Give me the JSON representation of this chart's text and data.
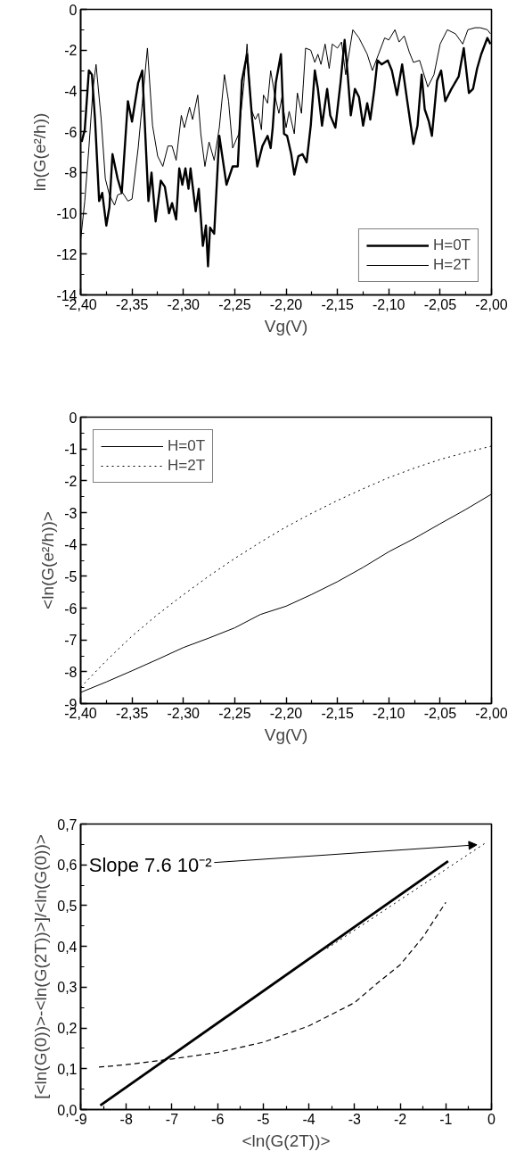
{
  "chart_data": [
    {
      "type": "line",
      "xlabel": "Vg(V)",
      "ylabel": "ln(G(e²/h))",
      "xlim": [
        -2.4,
        -2.0
      ],
      "ylim": [
        -14,
        0
      ],
      "xticks": [
        {
          "value": -2.4,
          "label": "-2,40"
        },
        {
          "value": -2.375,
          "label": null
        },
        {
          "value": -2.35,
          "label": "-2,35"
        },
        {
          "value": -2.325,
          "label": null
        },
        {
          "value": -2.3,
          "label": "-2,30"
        },
        {
          "value": -2.275,
          "label": null
        },
        {
          "value": -2.25,
          "label": "-2,25"
        },
        {
          "value": -2.225,
          "label": null
        },
        {
          "value": -2.2,
          "label": "-2,20"
        },
        {
          "value": -2.175,
          "label": null
        },
        {
          "value": -2.15,
          "label": "-2,15"
        },
        {
          "value": -2.125,
          "label": null
        },
        {
          "value": -2.1,
          "label": "-2,10"
        },
        {
          "value": -2.075,
          "label": null
        },
        {
          "value": -2.05,
          "label": "-2,05"
        },
        {
          "value": -2.025,
          "label": null
        },
        {
          "value": -2.0,
          "label": "-2,00"
        }
      ],
      "yticks": [
        -14,
        {
          "value": -13,
          "label": null
        },
        -12,
        {
          "value": -11,
          "label": null
        },
        -10,
        {
          "value": -9,
          "label": null
        },
        -8,
        {
          "value": -7,
          "label": null
        },
        -6,
        {
          "value": -5,
          "label": null
        },
        -4,
        {
          "value": -3,
          "label": null
        },
        -2,
        {
          "value": -1,
          "label": null
        },
        0
      ],
      "legend": "bottom right",
      "line_style": "solid",
      "series": [
        {
          "name": "H=0T",
          "color": "#000000",
          "x": [
            -2.399,
            -2.396,
            -2.392,
            -2.389,
            -2.386,
            -2.382,
            -2.379,
            -2.375,
            -2.372,
            -2.369,
            -2.364,
            -2.36,
            -2.354,
            -2.35,
            -2.344,
            -2.34,
            -2.334,
            -2.331,
            -2.327,
            -2.322,
            -2.318,
            -2.314,
            -2.311,
            -2.307,
            -2.304,
            -2.301,
            -2.298,
            -2.295,
            -2.293,
            -2.288,
            -2.285,
            -2.281,
            -2.278,
            -2.276,
            -2.274,
            -2.27,
            -2.265,
            -2.258,
            -2.252,
            -2.247,
            -2.243,
            -2.238,
            -2.233,
            -2.228,
            -2.223,
            -2.218,
            -2.215,
            -2.213,
            -2.21,
            -2.205,
            -2.202,
            -2.199,
            -2.195,
            -2.192,
            -2.188,
            -2.184,
            -2.18,
            -2.176,
            -2.172,
            -2.169,
            -2.165,
            -2.16,
            -2.157,
            -2.152,
            -2.147,
            -2.143,
            -2.14,
            -2.137,
            -2.133,
            -2.129,
            -2.125,
            -2.121,
            -2.118,
            -2.114,
            -2.111,
            -2.107,
            -2.101,
            -2.097,
            -2.092,
            -2.087,
            -2.082,
            -2.076,
            -2.072,
            -2.068,
            -2.065,
            -2.061,
            -2.058,
            -2.053,
            -2.049,
            -2.045,
            -2.039,
            -2.032,
            -2.027,
            -2.022,
            -2.018,
            -2.014,
            -2.01,
            -2.004,
            -2.001
          ],
          "values": [
            -6.5,
            -5.9,
            -3.0,
            -3.2,
            -5.4,
            -9.4,
            -9.0,
            -10.6,
            -9.7,
            -7.1,
            -8.3,
            -9.0,
            -4.5,
            -5.5,
            -3.6,
            -3.0,
            -9.4,
            -8.0,
            -10.4,
            -8.4,
            -8.7,
            -10.0,
            -9.5,
            -10.3,
            -7.8,
            -8.6,
            -7.8,
            -8.8,
            -7.8,
            -9.9,
            -8.8,
            -11.6,
            -10.6,
            -12.6,
            -10.7,
            -11.0,
            -6.2,
            -8.6,
            -7.7,
            -7.7,
            -3.5,
            -2.2,
            -5.4,
            -7.7,
            -6.7,
            -6.2,
            -6.8,
            -5.8,
            -3.6,
            -2.2,
            -6.1,
            -6.2,
            -7.1,
            -8.1,
            -7.2,
            -7.1,
            -7.5,
            -5.7,
            -3.0,
            -3.9,
            -5.7,
            -3.9,
            -5.2,
            -5.8,
            -3.6,
            -1.5,
            -3.2,
            -5.2,
            -3.9,
            -4.3,
            -5.7,
            -4.6,
            -5.4,
            -3.9,
            -2.5,
            -2.7,
            -2.5,
            -3.0,
            -4.2,
            -2.7,
            -4.5,
            -6.6,
            -5.7,
            -3.2,
            -4.9,
            -5.5,
            -6.2,
            -3.5,
            -3.0,
            -4.5,
            -3.9,
            -3.3,
            -1.9,
            -4.1,
            -3.9,
            -2.9,
            -2.2,
            -1.4,
            -1.7
          ]
        },
        {
          "name": "H=2T",
          "color": "#000000",
          "x": [
            -2.4,
            -2.396,
            -2.392,
            -2.388,
            -2.385,
            -2.38,
            -2.376,
            -2.372,
            -2.367,
            -2.364,
            -2.359,
            -2.354,
            -2.35,
            -2.344,
            -2.34,
            -2.335,
            -2.33,
            -2.325,
            -2.32,
            -2.315,
            -2.311,
            -2.307,
            -2.302,
            -2.299,
            -2.294,
            -2.291,
            -2.286,
            -2.283,
            -2.279,
            -2.275,
            -2.27,
            -2.265,
            -2.26,
            -2.256,
            -2.252,
            -2.246,
            -2.241,
            -2.238,
            -2.234,
            -2.23,
            -2.227,
            -2.224,
            -2.222,
            -2.218,
            -2.215,
            -2.211,
            -2.207,
            -2.204,
            -2.2,
            -2.197,
            -2.192,
            -2.189,
            -2.185,
            -2.181,
            -2.176,
            -2.172,
            -2.169,
            -2.166,
            -2.162,
            -2.158,
            -2.155,
            -2.15,
            -2.146,
            -2.142,
            -2.135,
            -2.129,
            -2.121,
            -2.116,
            -2.11,
            -2.104,
            -2.1,
            -2.094,
            -2.09,
            -2.085,
            -2.08,
            -2.076,
            -2.07,
            -2.062,
            -2.056,
            -2.05,
            -2.043,
            -2.035,
            -2.028,
            -2.023,
            -2.016,
            -2.011,
            -2.004,
            -2.001
          ],
          "values": [
            -11.3,
            -9.4,
            -6.8,
            -3.9,
            -2.7,
            -5.4,
            -8.3,
            -9.1,
            -9.6,
            -9.1,
            -9.0,
            -9.4,
            -9.3,
            -6.8,
            -4.6,
            -1.9,
            -5.7,
            -7.2,
            -7.7,
            -6.7,
            -6.7,
            -7.4,
            -5.2,
            -5.8,
            -4.8,
            -5.4,
            -4.2,
            -6.1,
            -7.7,
            -6.5,
            -7.4,
            -5.8,
            -3.2,
            -4.5,
            -6.8,
            -6.1,
            -3.6,
            -1.7,
            -4.9,
            -5.4,
            -5.1,
            -5.9,
            -4.2,
            -4.6,
            -3.0,
            -4.2,
            -5.1,
            -4.3,
            -5.8,
            -5.0,
            -6.1,
            -4.1,
            -5.1,
            -1.9,
            -2.0,
            -2.6,
            -2.2,
            -2.7,
            -1.7,
            -2.9,
            -1.7,
            -1.9,
            -1.6,
            -3.2,
            -1.0,
            -1.4,
            -2.2,
            -3.0,
            -2.2,
            -1.4,
            -1.5,
            -1.0,
            -1.6,
            -1.3,
            -2.1,
            -2.6,
            -2.5,
            -3.8,
            -3.2,
            -1.7,
            -1.0,
            -1.2,
            -1.7,
            -1.0,
            -0.9,
            -0.9,
            -1.0,
            -1.2
          ]
        }
      ]
    },
    {
      "type": "line",
      "xlabel": "Vg(V)",
      "ylabel": "<ln(G(e²/h))>",
      "xlim": [
        -2.4,
        -2.0
      ],
      "ylim": [
        -9,
        0
      ],
      "xticks": [
        {
          "value": -2.4,
          "label": "-2,40"
        },
        {
          "value": -2.375,
          "label": null
        },
        {
          "value": -2.35,
          "label": "-2,35"
        },
        {
          "value": -2.325,
          "label": null
        },
        {
          "value": -2.3,
          "label": "-2,30"
        },
        {
          "value": -2.275,
          "label": null
        },
        {
          "value": -2.25,
          "label": "-2,25"
        },
        {
          "value": -2.225,
          "label": null
        },
        {
          "value": -2.2,
          "label": "-2,20"
        },
        {
          "value": -2.175,
          "label": null
        },
        {
          "value": -2.15,
          "label": "-2,15"
        },
        {
          "value": -2.125,
          "label": null
        },
        {
          "value": -2.1,
          "label": "-2,10"
        },
        {
          "value": -2.075,
          "label": null
        },
        {
          "value": -2.05,
          "label": "-2,05"
        },
        {
          "value": -2.025,
          "label": null
        },
        {
          "value": -2.0,
          "label": "-2,00"
        }
      ],
      "yticks": [
        -9,
        {
          "value": -8.5,
          "label": null
        },
        -8,
        {
          "value": -7.5,
          "label": null
        },
        -7,
        {
          "value": -6.5,
          "label": null
        },
        -6,
        {
          "value": -5.5,
          "label": null
        },
        -5,
        {
          "value": -4.5,
          "label": null
        },
        -4,
        {
          "value": -3.5,
          "label": null
        },
        -3,
        {
          "value": -2.5,
          "label": null
        },
        -2,
        {
          "value": -1.5,
          "label": null
        },
        -1,
        {
          "value": -0.5,
          "label": null
        },
        0
      ],
      "legend": "top left",
      "x": [
        -2.4,
        -2.375,
        -2.35,
        -2.325,
        -2.3,
        -2.275,
        -2.25,
        -2.225,
        -2.2,
        -2.175,
        -2.15,
        -2.125,
        -2.1,
        -2.075,
        -2.05,
        -2.025,
        -2.0
      ],
      "series": [
        {
          "name": "H=0T",
          "color": "#000000",
          "line_style": "solid",
          "values": [
            -8.65,
            -8.32,
            -7.97,
            -7.61,
            -7.24,
            -6.94,
            -6.62,
            -6.2,
            -5.94,
            -5.57,
            -5.17,
            -4.72,
            -4.23,
            -3.81,
            -3.35,
            -2.9,
            -2.42
          ]
        },
        {
          "name": "H=2T",
          "color": "#000000",
          "line_style": "dotted",
          "values": [
            -8.49,
            -7.65,
            -6.88,
            -6.2,
            -5.58,
            -4.99,
            -4.44,
            -3.93,
            -3.45,
            -3.02,
            -2.62,
            -2.25,
            -1.9,
            -1.6,
            -1.33,
            -1.11,
            -0.91
          ]
        }
      ]
    },
    {
      "type": "line",
      "xlabel": "<ln(G(2T))>",
      "ylabel": "[<ln(G(0))>-<ln(G(2T))>]/<ln(G(0))>",
      "xlim": [
        -9,
        0
      ],
      "ylim": [
        0,
        0.7
      ],
      "xticks": [
        -9,
        {
          "value": -8.5,
          "label": null
        },
        -8,
        {
          "value": -7.5,
          "label": null
        },
        -7,
        {
          "value": -6.5,
          "label": null
        },
        -6,
        {
          "value": -5.5,
          "label": null
        },
        -5,
        {
          "value": -4.5,
          "label": null
        },
        -4,
        {
          "value": -3.5,
          "label": null
        },
        -3,
        {
          "value": -2.5,
          "label": null
        },
        -2,
        {
          "value": -1.5,
          "label": null
        },
        -1,
        {
          "value": -0.5,
          "label": null
        },
        0
      ],
      "yticks": [
        {
          "value": 0,
          "label": "0,0"
        },
        {
          "value": 0.05,
          "label": null
        },
        {
          "value": 0.1,
          "label": "0,1"
        },
        {
          "value": 0.15,
          "label": null
        },
        {
          "value": 0.2,
          "label": "0,2"
        },
        {
          "value": 0.25,
          "label": null
        },
        {
          "value": 0.3,
          "label": "0,3"
        },
        {
          "value": 0.35,
          "label": null
        },
        {
          "value": 0.4,
          "label": "0,4"
        },
        {
          "value": 0.45,
          "label": null
        },
        {
          "value": 0.5,
          "label": "0,5"
        },
        {
          "value": 0.55,
          "label": null
        },
        {
          "value": 0.6,
          "label": "0,6"
        },
        {
          "value": 0.65,
          "label": null
        },
        {
          "value": 0.7,
          "label": "0,7"
        }
      ],
      "annotations": [
        {
          "text": "Slope 7.6 10⁻²",
          "x": -0.32,
          "y": 0.649
        }
      ],
      "series": [
        {
          "color": "#000000",
          "line_style": "solid",
          "x": [
            -8.57,
            -0.95
          ],
          "values": [
            0.01,
            0.609
          ]
        },
        {
          "color": "#000000",
          "line_style": "dotted",
          "x": [
            -3.6,
            -0.1
          ],
          "values": [
            0.395,
            0.656
          ]
        },
        {
          "color": "#000000",
          "line_style": "dashed",
          "x": [
            -8.6,
            -8,
            -7,
            -6,
            -5,
            -4,
            -3,
            -2.5,
            -2,
            -1.5,
            -1
          ],
          "values": [
            0.104,
            0.11,
            0.124,
            0.14,
            0.165,
            0.205,
            0.262,
            0.31,
            0.355,
            0.423,
            0.508
          ]
        }
      ]
    }
  ]
}
